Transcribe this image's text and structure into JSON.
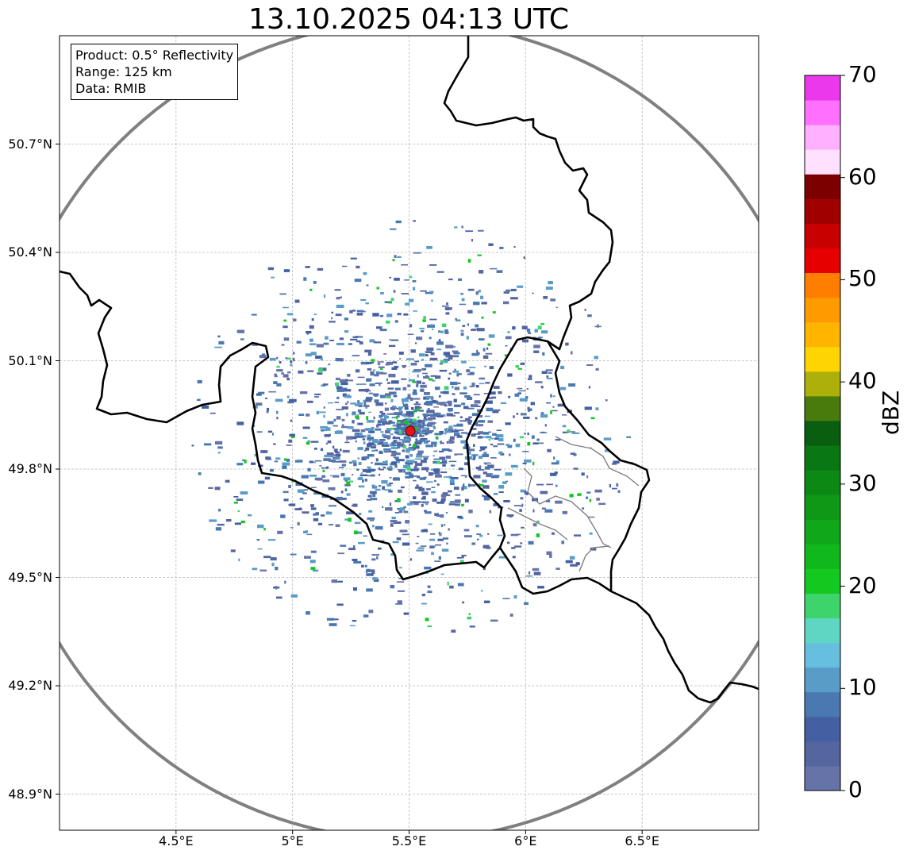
{
  "title": "13.10.2025 04:13 UTC",
  "info": {
    "product": "Product: 0.5° Reflectivity",
    "range": "Range: 125 km",
    "data": "Data: RMIB"
  },
  "map": {
    "lon_range": [
      4.0,
      7.0
    ],
    "lat_range": [
      48.8,
      51.0
    ],
    "radar_site": {
      "lon": 5.5,
      "lat": 49.91,
      "color": "#e8141a"
    },
    "range_ring_color": "#808080",
    "border_color": "#000000",
    "gridlines": true
  },
  "axes": {
    "lat_ticks": [
      {
        "value": 50.7,
        "label": "50.7°N"
      },
      {
        "value": 50.4,
        "label": "50.4°N"
      },
      {
        "value": 50.1,
        "label": "50.1°N"
      },
      {
        "value": 49.8,
        "label": "49.8°N"
      },
      {
        "value": 49.5,
        "label": "49.5°N"
      },
      {
        "value": 49.2,
        "label": "49.2°N"
      },
      {
        "value": 48.9,
        "label": "48.9°N"
      }
    ],
    "lon_ticks": [
      {
        "value": 4.5,
        "label": "4.5°E"
      },
      {
        "value": 5.0,
        "label": "5°E"
      },
      {
        "value": 5.5,
        "label": "5.5°E"
      },
      {
        "value": 6.0,
        "label": "6°E"
      },
      {
        "value": 6.5,
        "label": "6.5°E"
      }
    ]
  },
  "colorbar": {
    "label": "dBZ",
    "range": [
      0,
      70
    ],
    "ticks": [
      {
        "value": 70,
        "label": "70"
      },
      {
        "value": 60,
        "label": "60"
      },
      {
        "value": 50,
        "label": "50"
      },
      {
        "value": 40,
        "label": "40"
      },
      {
        "value": 30,
        "label": "30"
      },
      {
        "value": 20,
        "label": "20"
      },
      {
        "value": 10,
        "label": "10"
      },
      {
        "value": 0,
        "label": "0"
      }
    ],
    "colors": [
      "#6573a8",
      "#5465a0",
      "#4460a3",
      "#4a78b0",
      "#599cc8",
      "#66bfdf",
      "#5fd5c3",
      "#3dd46b",
      "#13c81e",
      "#10b81b",
      "#10a81a",
      "#0e9816",
      "#0c8814",
      "#0a7812",
      "#095e10",
      "#487a0c",
      "#adaf0a",
      "#ffd400",
      "#ffb400",
      "#ff9a00",
      "#ff7e00",
      "#e60000",
      "#c80000",
      "#a00000",
      "#7d0000",
      "#ffe0ff",
      "#ffb0ff",
      "#ff70ff",
      "#ec38ec"
    ]
  }
}
